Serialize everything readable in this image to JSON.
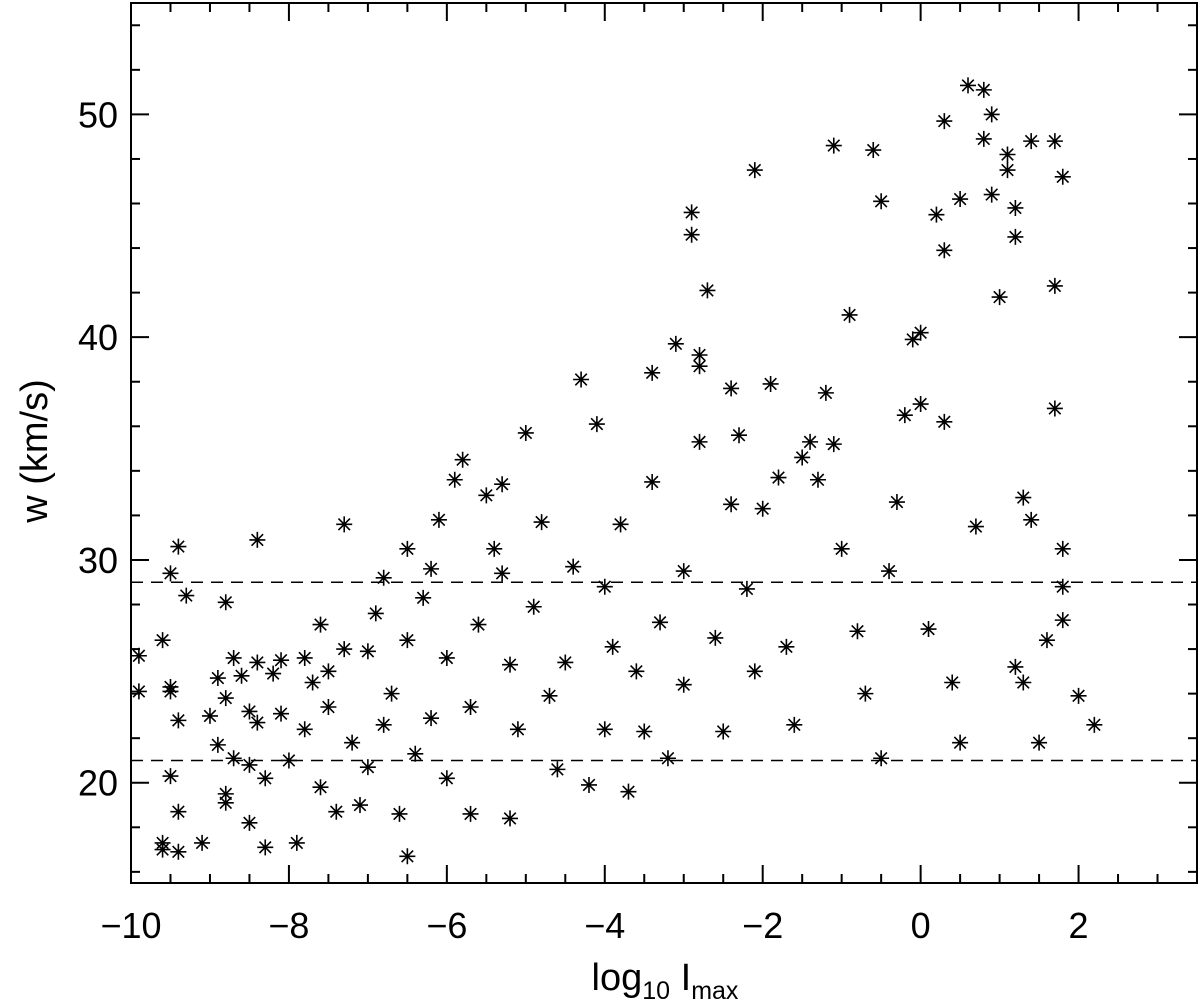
{
  "chart_data": {
    "type": "scatter",
    "title": "",
    "xlabel": {
      "base": "log",
      "base_sub": "10",
      "main": " I",
      "main_sub": "max"
    },
    "ylabel": "w (km/s)",
    "xlim": [
      -10,
      3.5
    ],
    "ylim": [
      15.5,
      55
    ],
    "x_ticks": [
      -10,
      -8,
      -6,
      -4,
      -2,
      0,
      2
    ],
    "x_tick_labels": [
      "−10",
      "−8",
      "−6",
      "−4",
      "−2",
      "0",
      "2"
    ],
    "y_ticks": [
      20,
      30,
      40,
      50
    ],
    "y_tick_labels": [
      "20",
      "30",
      "40",
      "50"
    ],
    "x_minor_step": 0.5,
    "y_minor_step": 2,
    "marker": "asterisk",
    "marker_color": "#000000",
    "reference_lines": [
      {
        "y": 29,
        "style": "dashed"
      },
      {
        "y": 21,
        "style": "dashed"
      }
    ],
    "grid": false,
    "legend": "none",
    "points": [
      [
        -9.9,
        25.7
      ],
      [
        -9.9,
        24.1
      ],
      [
        -9.6,
        26.4
      ],
      [
        -9.5,
        24.3
      ],
      [
        -9.5,
        24.1
      ],
      [
        -9.5,
        20.3
      ],
      [
        -9.5,
        29.4
      ],
      [
        -9.4,
        30.6
      ],
      [
        -9.3,
        28.4
      ],
      [
        -9.4,
        22.8
      ],
      [
        -9.4,
        18.7
      ],
      [
        -9.6,
        17.3
      ],
      [
        -9.6,
        17.0
      ],
      [
        -9.4,
        16.9
      ],
      [
        -9.1,
        17.3
      ],
      [
        -9.0,
        23.0
      ],
      [
        -8.9,
        21.7
      ],
      [
        -8.9,
        24.7
      ],
      [
        -8.8,
        19.5
      ],
      [
        -8.8,
        19.1
      ],
      [
        -8.8,
        23.8
      ],
      [
        -8.8,
        28.1
      ],
      [
        -8.7,
        25.6
      ],
      [
        -8.7,
        21.1
      ],
      [
        -8.6,
        24.8
      ],
      [
        -8.5,
        23.2
      ],
      [
        -8.5,
        20.8
      ],
      [
        -8.5,
        18.2
      ],
      [
        -8.4,
        30.9
      ],
      [
        -8.4,
        25.4
      ],
      [
        -8.4,
        22.7
      ],
      [
        -8.3,
        20.2
      ],
      [
        -8.3,
        17.1
      ],
      [
        -8.2,
        24.9
      ],
      [
        -8.1,
        25.5
      ],
      [
        -8.1,
        23.1
      ],
      [
        -8.0,
        21.0
      ],
      [
        -7.9,
        17.3
      ],
      [
        -7.8,
        25.6
      ],
      [
        -7.8,
        22.4
      ],
      [
        -7.7,
        24.5
      ],
      [
        -7.6,
        27.1
      ],
      [
        -7.6,
        19.8
      ],
      [
        -7.5,
        25.0
      ],
      [
        -7.5,
        23.4
      ],
      [
        -7.4,
        18.7
      ],
      [
        -7.3,
        31.6
      ],
      [
        -7.3,
        26.0
      ],
      [
        -7.2,
        21.8
      ],
      [
        -7.1,
        19.0
      ],
      [
        -7.0,
        25.9
      ],
      [
        -7.0,
        20.7
      ],
      [
        -6.9,
        27.6
      ],
      [
        -6.8,
        29.2
      ],
      [
        -6.8,
        22.6
      ],
      [
        -6.7,
        24.0
      ],
      [
        -6.6,
        18.6
      ],
      [
        -6.5,
        30.5
      ],
      [
        -6.5,
        26.4
      ],
      [
        -6.4,
        21.3
      ],
      [
        -6.5,
        16.7
      ],
      [
        -6.3,
        28.3
      ],
      [
        -6.2,
        29.6
      ],
      [
        -6.2,
        22.9
      ],
      [
        -6.1,
        31.8
      ],
      [
        -6.0,
        25.6
      ],
      [
        -6.0,
        20.2
      ],
      [
        -5.9,
        33.6
      ],
      [
        -5.8,
        34.5
      ],
      [
        -5.7,
        23.4
      ],
      [
        -5.7,
        18.6
      ],
      [
        -5.6,
        27.1
      ],
      [
        -5.5,
        32.9
      ],
      [
        -5.4,
        30.5
      ],
      [
        -5.3,
        33.4
      ],
      [
        -5.3,
        29.4
      ],
      [
        -5.2,
        25.3
      ],
      [
        -5.2,
        18.4
      ],
      [
        -5.1,
        22.4
      ],
      [
        -5.0,
        35.7
      ],
      [
        -4.9,
        27.9
      ],
      [
        -4.8,
        31.7
      ],
      [
        -4.7,
        23.9
      ],
      [
        -4.6,
        20.6
      ],
      [
        -4.5,
        25.4
      ],
      [
        -4.4,
        29.7
      ],
      [
        -4.3,
        38.1
      ],
      [
        -4.2,
        19.9
      ],
      [
        -4.1,
        36.1
      ],
      [
        -4.0,
        28.8
      ],
      [
        -4.0,
        22.4
      ],
      [
        -3.9,
        26.1
      ],
      [
        -3.8,
        31.6
      ],
      [
        -3.7,
        19.6
      ],
      [
        -3.6,
        25.0
      ],
      [
        -3.5,
        22.3
      ],
      [
        -3.4,
        38.4
      ],
      [
        -3.4,
        33.5
      ],
      [
        -3.3,
        27.2
      ],
      [
        -3.2,
        21.1
      ],
      [
        -3.1,
        39.7
      ],
      [
        -3.0,
        29.5
      ],
      [
        -3.0,
        24.4
      ],
      [
        -2.9,
        45.6
      ],
      [
        -2.9,
        44.6
      ],
      [
        -2.8,
        39.2
      ],
      [
        -2.8,
        38.7
      ],
      [
        -2.8,
        35.3
      ],
      [
        -2.7,
        42.1
      ],
      [
        -2.6,
        26.5
      ],
      [
        -2.5,
        22.3
      ],
      [
        -2.4,
        37.7
      ],
      [
        -2.4,
        32.5
      ],
      [
        -2.3,
        35.6
      ],
      [
        -2.2,
        28.7
      ],
      [
        -2.1,
        47.5
      ],
      [
        -2.1,
        25.0
      ],
      [
        -2.0,
        32.3
      ],
      [
        -1.9,
        37.9
      ],
      [
        -1.8,
        33.7
      ],
      [
        -1.7,
        26.1
      ],
      [
        -1.6,
        22.6
      ],
      [
        -1.5,
        34.6
      ],
      [
        -1.4,
        35.3
      ],
      [
        -1.3,
        33.6
      ],
      [
        -1.2,
        37.5
      ],
      [
        -1.1,
        48.6
      ],
      [
        -1.1,
        35.2
      ],
      [
        -1.0,
        30.5
      ],
      [
        -0.9,
        41.0
      ],
      [
        -0.8,
        26.8
      ],
      [
        -0.7,
        24.0
      ],
      [
        -0.6,
        48.4
      ],
      [
        -0.5,
        46.1
      ],
      [
        -0.5,
        21.1
      ],
      [
        -0.4,
        29.5
      ],
      [
        -0.3,
        32.6
      ],
      [
        -0.2,
        36.5
      ],
      [
        -0.1,
        39.9
      ],
      [
        0.0,
        40.2
      ],
      [
        0.0,
        37.0
      ],
      [
        0.1,
        26.9
      ],
      [
        0.2,
        45.5
      ],
      [
        0.3,
        49.7
      ],
      [
        0.3,
        43.9
      ],
      [
        0.3,
        36.2
      ],
      [
        0.4,
        24.5
      ],
      [
        0.5,
        46.2
      ],
      [
        0.5,
        21.8
      ],
      [
        0.6,
        51.3
      ],
      [
        0.7,
        31.5
      ],
      [
        0.8,
        51.1
      ],
      [
        0.8,
        48.9
      ],
      [
        0.9,
        50.0
      ],
      [
        0.9,
        46.4
      ],
      [
        1.0,
        41.8
      ],
      [
        1.1,
        48.2
      ],
      [
        1.1,
        47.5
      ],
      [
        1.2,
        45.8
      ],
      [
        1.2,
        44.5
      ],
      [
        1.2,
        25.2
      ],
      [
        1.3,
        32.8
      ],
      [
        1.3,
        24.5
      ],
      [
        1.4,
        48.8
      ],
      [
        1.4,
        31.8
      ],
      [
        1.5,
        21.8
      ],
      [
        1.6,
        26.4
      ],
      [
        1.7,
        48.8
      ],
      [
        1.7,
        42.3
      ],
      [
        1.7,
        36.8
      ],
      [
        1.8,
        47.2
      ],
      [
        1.8,
        30.5
      ],
      [
        1.8,
        28.8
      ],
      [
        1.8,
        27.3
      ],
      [
        2.0,
        23.9
      ],
      [
        2.2,
        22.6
      ]
    ]
  }
}
